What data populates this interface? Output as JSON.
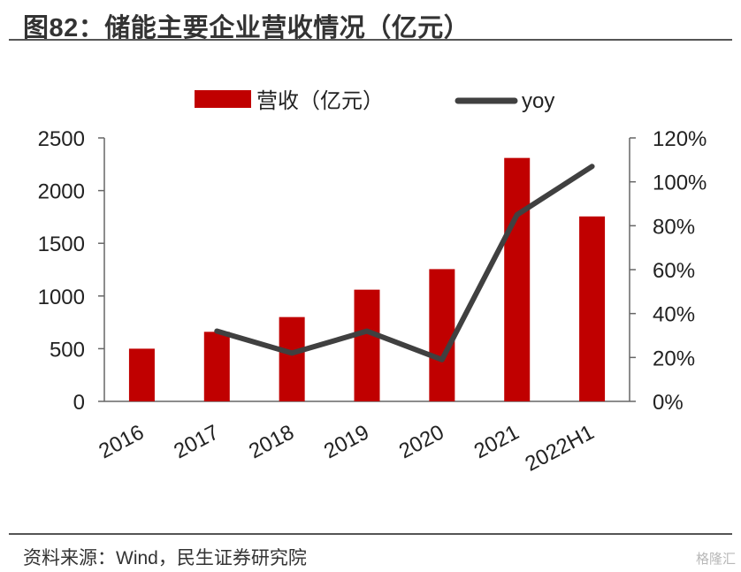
{
  "figure": {
    "title": "图82：储能主要企业营收情况（亿元）",
    "source": "资料来源：Wind，民生证券研究院",
    "watermark": "格隆汇"
  },
  "chart_data": {
    "type": "bar",
    "categories": [
      "2016",
      "2017",
      "2018",
      "2019",
      "2020",
      "2021",
      "2022H1"
    ],
    "series": [
      {
        "name": "营收（亿元）",
        "type": "bar",
        "axis": "left",
        "color": "#c00000",
        "values": [
          500,
          660,
          800,
          1060,
          1255,
          2310,
          1755
        ]
      },
      {
        "name": "yoy",
        "type": "line",
        "axis": "right",
        "color": "#404040",
        "values": [
          null,
          0.32,
          0.22,
          0.32,
          0.19,
          0.85,
          1.07
        ]
      }
    ],
    "y_left": {
      "min": 0,
      "max": 2500,
      "ticks": [
        0,
        500,
        1000,
        1500,
        2000,
        2500
      ],
      "tick_labels": [
        "0",
        "500",
        "1000",
        "1500",
        "2000",
        "2500"
      ]
    },
    "y_right": {
      "min": 0,
      "max": 1.2,
      "ticks": [
        0,
        0.2,
        0.4,
        0.6,
        0.8,
        1.0,
        1.2
      ],
      "tick_labels": [
        "0%",
        "20%",
        "40%",
        "60%",
        "80%",
        "100%",
        "120%"
      ]
    },
    "legend": {
      "position": "top",
      "entries": [
        "营收（亿元）",
        "yoy"
      ]
    },
    "grid": false
  }
}
